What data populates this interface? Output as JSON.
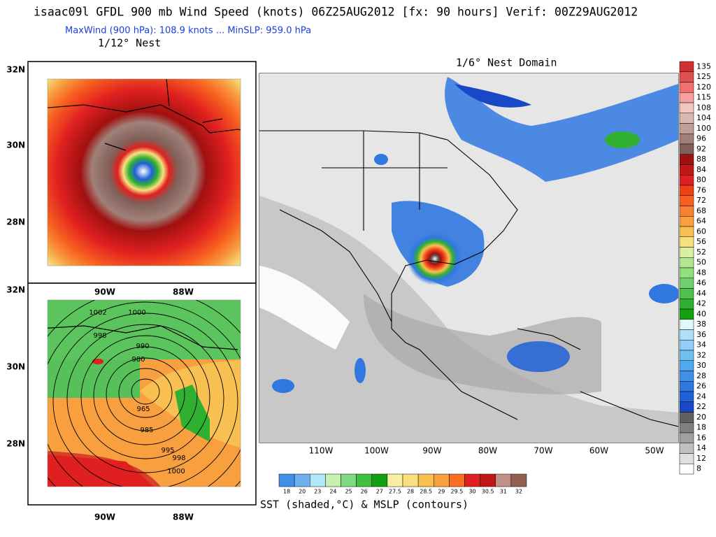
{
  "header": {
    "title": "isaac09l GFDL 900 mb Wind Speed (knots) 06Z25AUG2012 [fx: 90 hours] Verif: 00Z29AUG2012",
    "subtitle": "MaxWind (900 hPa): 108.9 knots ... MinSLP: 959.0 hPa",
    "nest_label": "1/12° Nest",
    "domain_label": "1/6° Nest Domain"
  },
  "left_panels": {
    "top_lat_labels": [
      "32N",
      "30N",
      "28N"
    ],
    "bottom_lat_labels": [
      "32N",
      "30N",
      "28N"
    ],
    "top_lon_labels": [
      "90W",
      "88W"
    ],
    "bottom_lon_labels": [
      "90W",
      "88W"
    ],
    "contour_labels": [
      "1002",
      "1000",
      "998",
      "990",
      "980",
      "965",
      "985",
      "995",
      "998",
      "1000"
    ]
  },
  "right_panel": {
    "lon_labels": [
      "110W",
      "100W",
      "90W",
      "80W",
      "70W",
      "60W",
      "50W"
    ]
  },
  "wind_colorbar": {
    "labels": [
      "135",
      "125",
      "120",
      "115",
      "108",
      "104",
      "100",
      "96",
      "92",
      "88",
      "84",
      "80",
      "76",
      "72",
      "68",
      "64",
      "60",
      "56",
      "52",
      "50",
      "48",
      "46",
      "44",
      "42",
      "40",
      "38",
      "36",
      "34",
      "32",
      "30",
      "28",
      "26",
      "24",
      "22",
      "20",
      "18",
      "16",
      "14",
      "12",
      "8"
    ]
  },
  "sst_colorbar": {
    "labels": [
      "18",
      "20",
      "23",
      "24",
      "25",
      "26",
      "27",
      "27.5",
      "28",
      "28.5",
      "29",
      "29.5",
      "30",
      "30.5",
      "31",
      "32"
    ]
  },
  "footer": {
    "caption": "SST (shaded,°C) & MSLP (contours)"
  }
}
